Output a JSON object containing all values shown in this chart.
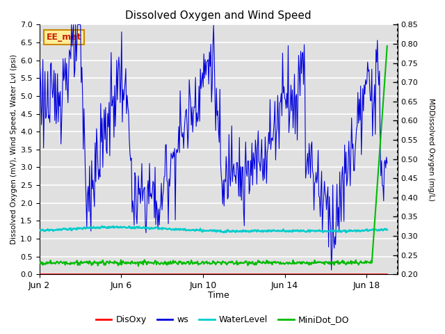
{
  "title": "Dissolved Oxygen and Wind Speed",
  "ylabel_left": "Dissolved Oxygen (mV), Wind Speed, Water Lvl (psi)",
  "ylabel_right": "MDDissolved Oxygen (mg/L)",
  "xlabel": "Time",
  "annotation": "EE_met",
  "ylim_left": [
    0.0,
    7.0
  ],
  "ylim_right": [
    0.2,
    0.85
  ],
  "yticks_left": [
    0.0,
    0.5,
    1.0,
    1.5,
    2.0,
    2.5,
    3.0,
    3.5,
    4.0,
    4.5,
    5.0,
    5.5,
    6.0,
    6.5,
    7.0
  ],
  "yticks_right": [
    0.2,
    0.25,
    0.3,
    0.35,
    0.4,
    0.45,
    0.5,
    0.55,
    0.6,
    0.65,
    0.7,
    0.75,
    0.8,
    0.85
  ],
  "xtick_positions": [
    0,
    4,
    8,
    12,
    16
  ],
  "xtick_labels": [
    "Jun 2",
    "Jun 6",
    "Jun 10",
    "Jun 14",
    "Jun 18"
  ],
  "xlim": [
    0,
    17.5
  ],
  "colors": {
    "DisOxy": "#ff0000",
    "ws": "#0000dd",
    "WaterLevel": "#00cccc",
    "MiniDot_DO": "#00bb00"
  },
  "legend_labels": [
    "DisOxy",
    "ws",
    "WaterLevel",
    "MiniDot_DO"
  ],
  "background_color": "#e0e0e0",
  "grid_color": "#ffffff",
  "fig_bgcolor": "#ffffff"
}
